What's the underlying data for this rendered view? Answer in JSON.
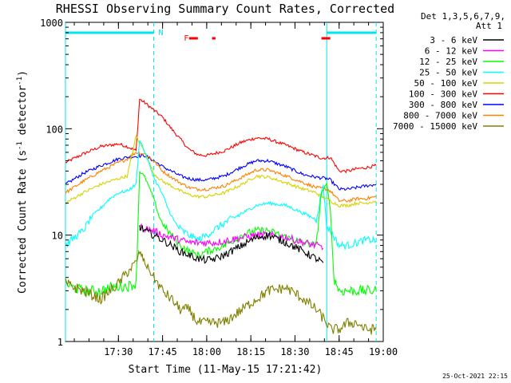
{
  "chart_data": {
    "type": "line",
    "title": "RHESSI Observing Summary Count Rates, Corrected",
    "xlabel": "Start Time (11-May-15 17:21:42)",
    "ylabel": "Corrected Count Rate (s⁻¹ detector⁻¹)",
    "ylabel_main": "Corrected Count Rate (s",
    "ylabel_sup1": "-1",
    "ylabel_mid": " detector",
    "ylabel_sup2": "-1",
    "ylabel_end": ")",
    "y_scale": "log",
    "ylim": [
      1,
      1000
    ],
    "xlim_min": [
      17.2,
      19.0
    ],
    "x_ticks": [
      {
        "t": 17.5,
        "label": "17:30"
      },
      {
        "t": 17.75,
        "label": "17:45"
      },
      {
        "t": 18.0,
        "label": "18:00"
      },
      {
        "t": 18.25,
        "label": "18:15"
      },
      {
        "t": 18.5,
        "label": "18:30"
      },
      {
        "t": 18.75,
        "label": "18:45"
      },
      {
        "t": 19.0,
        "label": "19:00"
      }
    ],
    "y_tick_labels": [
      {
        "v": 1,
        "label": "1"
      },
      {
        "v": 10,
        "label": "10"
      },
      {
        "v": 100,
        "label": "100"
      },
      {
        "v": 1000,
        "label": "1000"
      }
    ],
    "legend": {
      "position": "top-right",
      "header1": "Det 1,3,5,6,7,9,",
      "header2": "Att 1",
      "entries": [
        {
          "label": "3 - 6 keV",
          "color": "#000000"
        },
        {
          "label": "6 - 12 keV",
          "color": "#ff00ff"
        },
        {
          "label": "12 - 25 keV",
          "color": "#00ff00"
        },
        {
          "label": "25 - 50 keV",
          "color": "#00ffff"
        },
        {
          "label": "50 - 100 keV",
          "color": "#d4d400"
        },
        {
          "label": "100 - 300 keV",
          "color": "#ff0000"
        },
        {
          "label": "300 - 800 keV",
          "color": "#0000ff"
        },
        {
          "label": "800 - 7000 keV",
          "color": "#ff8000"
        },
        {
          "label": "7000 - 15000 keV",
          "color": "#808000"
        }
      ]
    },
    "annotations": {
      "night_label": "N",
      "flare_label": "F",
      "night_intervals": [
        [
          17.2,
          17.7
        ],
        [
          18.68,
          18.96
        ]
      ],
      "flare_intervals": [
        [
          17.9,
          17.95
        ],
        [
          18.03,
          18.05
        ],
        [
          18.65,
          18.7
        ]
      ],
      "night_color": "#00e5ee",
      "flare_color": "#ff0000",
      "vertical_solid": [
        17.2,
        18.68
      ],
      "vertical_dashed": [
        17.7,
        18.96
      ]
    },
    "series": [
      {
        "name": "100 - 300 keV",
        "color": "#ff0000",
        "x": [
          17.2,
          17.3,
          17.4,
          17.5,
          17.55,
          17.6,
          17.62,
          17.65,
          17.7,
          17.75,
          17.8,
          17.85,
          17.9,
          17.95,
          18.0,
          18.1,
          18.2,
          18.28,
          18.35,
          18.45,
          18.55,
          18.62,
          18.65,
          18.68,
          18.7,
          18.75,
          18.8,
          18.85,
          18.9,
          18.96
        ],
        "values": [
          48,
          58,
          68,
          72,
          68,
          62,
          190,
          175,
          150,
          128,
          100,
          80,
          64,
          57,
          56,
          62,
          75,
          82,
          80,
          70,
          60,
          55,
          53,
          53,
          54,
          40,
          40,
          42,
          43,
          45
        ]
      },
      {
        "name": "300 - 800 keV",
        "color": "#0000ff",
        "x": [
          17.2,
          17.3,
          17.4,
          17.5,
          17.55,
          17.6,
          17.65,
          17.7,
          17.75,
          17.8,
          17.85,
          17.9,
          17.95,
          18.0,
          18.1,
          18.2,
          18.28,
          18.35,
          18.45,
          18.55,
          18.62,
          18.68,
          18.7,
          18.75,
          18.8,
          18.85,
          18.9,
          18.96
        ],
        "values": [
          30,
          38,
          45,
          52,
          54,
          55,
          56,
          50,
          44,
          40,
          36,
          34,
          33,
          33,
          36,
          44,
          50,
          50,
          44,
          37,
          35,
          34,
          33,
          27,
          27,
          28,
          29,
          30
        ]
      },
      {
        "name": "800 - 7000 keV",
        "color": "#ff8000",
        "x": [
          17.2,
          17.3,
          17.4,
          17.5,
          17.55,
          17.6,
          17.65,
          17.7,
          17.75,
          17.8,
          17.85,
          17.9,
          17.95,
          18.0,
          18.1,
          18.2,
          18.28,
          18.35,
          18.45,
          18.55,
          18.62,
          18.68,
          18.7,
          18.75,
          18.8,
          18.85,
          18.9,
          18.96
        ],
        "values": [
          25,
          32,
          40,
          48,
          52,
          60,
          58,
          50,
          40,
          35,
          31,
          28,
          27,
          27,
          29,
          35,
          41,
          41,
          36,
          31,
          28,
          27,
          26,
          21,
          21,
          22,
          22,
          23
        ]
      },
      {
        "name": "50 - 100 keV",
        "color": "#d4d400",
        "x": [
          17.2,
          17.3,
          17.4,
          17.5,
          17.55,
          17.6,
          17.65,
          17.7,
          17.75,
          17.8,
          17.85,
          17.9,
          17.95,
          18.0,
          18.1,
          18.2,
          18.28,
          18.35,
          18.45,
          18.55,
          18.62,
          18.65,
          18.68,
          18.7,
          18.75,
          18.8,
          18.85,
          18.9,
          18.96
        ],
        "values": [
          20,
          25,
          30,
          34,
          36,
          85,
          60,
          38,
          32,
          29,
          26,
          24,
          23,
          23,
          25,
          30,
          36,
          35,
          31,
          27,
          25,
          23,
          22,
          21,
          19,
          19,
          20,
          20,
          21
        ]
      },
      {
        "name": "25 - 50 keV",
        "color": "#00ffff",
        "x": [
          17.2,
          17.25,
          17.3,
          17.35,
          17.4,
          17.45,
          17.5,
          17.55,
          17.6,
          17.62,
          17.65,
          17.7,
          17.75,
          17.78,
          17.82,
          17.86,
          17.9,
          17.95,
          18.0,
          18.1,
          18.2,
          18.28,
          18.35,
          18.45,
          18.55,
          18.62,
          18.66,
          18.68,
          18.7,
          18.75,
          18.8,
          18.85,
          18.9,
          18.96
        ],
        "values": [
          8,
          9.5,
          11,
          15,
          18,
          22,
          25,
          26,
          30,
          80,
          60,
          35,
          24,
          18,
          13,
          11,
          10,
          9,
          10,
          13,
          16,
          19,
          20,
          19,
          16,
          14,
          30,
          12,
          11,
          8,
          8,
          8.5,
          9,
          9
        ]
      },
      {
        "name": "12 - 25 keV",
        "color": "#00ff00",
        "x": [
          17.2,
          17.25,
          17.3,
          17.35,
          17.4,
          17.45,
          17.5,
          17.55,
          17.6,
          17.62,
          17.65,
          17.7,
          17.73,
          17.76,
          17.8,
          17.85,
          17.9,
          17.95,
          18.0,
          18.1,
          18.2,
          18.28,
          18.35,
          18.45,
          18.55,
          18.62,
          18.65,
          18.68,
          18.7,
          18.72,
          18.75,
          18.8,
          18.85,
          18.9,
          18.96
        ],
        "values": [
          3.5,
          3.2,
          3,
          3,
          3,
          3.2,
          3.3,
          3.3,
          3.5,
          40,
          35,
          22,
          15,
          12,
          10,
          8,
          7,
          6.5,
          7,
          8,
          10,
          11,
          11,
          9.5,
          8.5,
          8,
          25,
          30,
          18,
          4,
          3,
          3,
          3,
          3,
          3
        ]
      },
      {
        "name": "6 - 12 keV",
        "color": "#ff00ff",
        "x": [
          17.62,
          17.65,
          17.7,
          17.75,
          17.8,
          17.85,
          17.9,
          17.95,
          18.0,
          18.05,
          18.1,
          18.2,
          18.28,
          18.35,
          18.45,
          18.55,
          18.62,
          18.66
        ],
        "values": [
          12,
          11.5,
          11,
          10,
          9.5,
          9,
          8.5,
          8.5,
          8.5,
          8.5,
          8.8,
          9.5,
          10,
          10,
          9.5,
          8.5,
          8,
          7.5
        ]
      },
      {
        "name": "3 - 6 keV",
        "color": "#000000",
        "x": [
          17.62,
          17.65,
          17.7,
          17.75,
          17.8,
          17.85,
          17.9,
          17.95,
          18.0,
          18.05,
          18.1,
          18.2,
          18.28,
          18.35,
          18.45,
          18.55,
          18.62,
          18.66
        ],
        "values": [
          12,
          11,
          10,
          9,
          8,
          7,
          6.5,
          6,
          5.8,
          6,
          6.5,
          8,
          9.5,
          10,
          8.5,
          7,
          6,
          5.5
        ]
      },
      {
        "name": "7000 - 15000 keV",
        "color": "#808000",
        "x": [
          17.2,
          17.3,
          17.4,
          17.5,
          17.55,
          17.6,
          17.62,
          17.65,
          17.7,
          17.75,
          17.8,
          17.85,
          17.9,
          17.95,
          18.0,
          18.1,
          18.2,
          18.28,
          18.35,
          18.45,
          18.55,
          18.62,
          18.68,
          18.7,
          18.75,
          18.8,
          18.85,
          18.9,
          18.96
        ],
        "values": [
          3.5,
          3,
          2.5,
          3.5,
          4.5,
          5.5,
          7,
          5.5,
          4,
          3,
          2.5,
          2,
          2,
          1.5,
          1.5,
          1.5,
          2,
          2.5,
          3,
          3.2,
          2.5,
          2,
          1.5,
          1.3,
          1.3,
          1.5,
          1.5,
          1.3,
          1.3
        ]
      }
    ]
  },
  "footer": {
    "timestamp": "25-Oct-2021 22:15"
  }
}
